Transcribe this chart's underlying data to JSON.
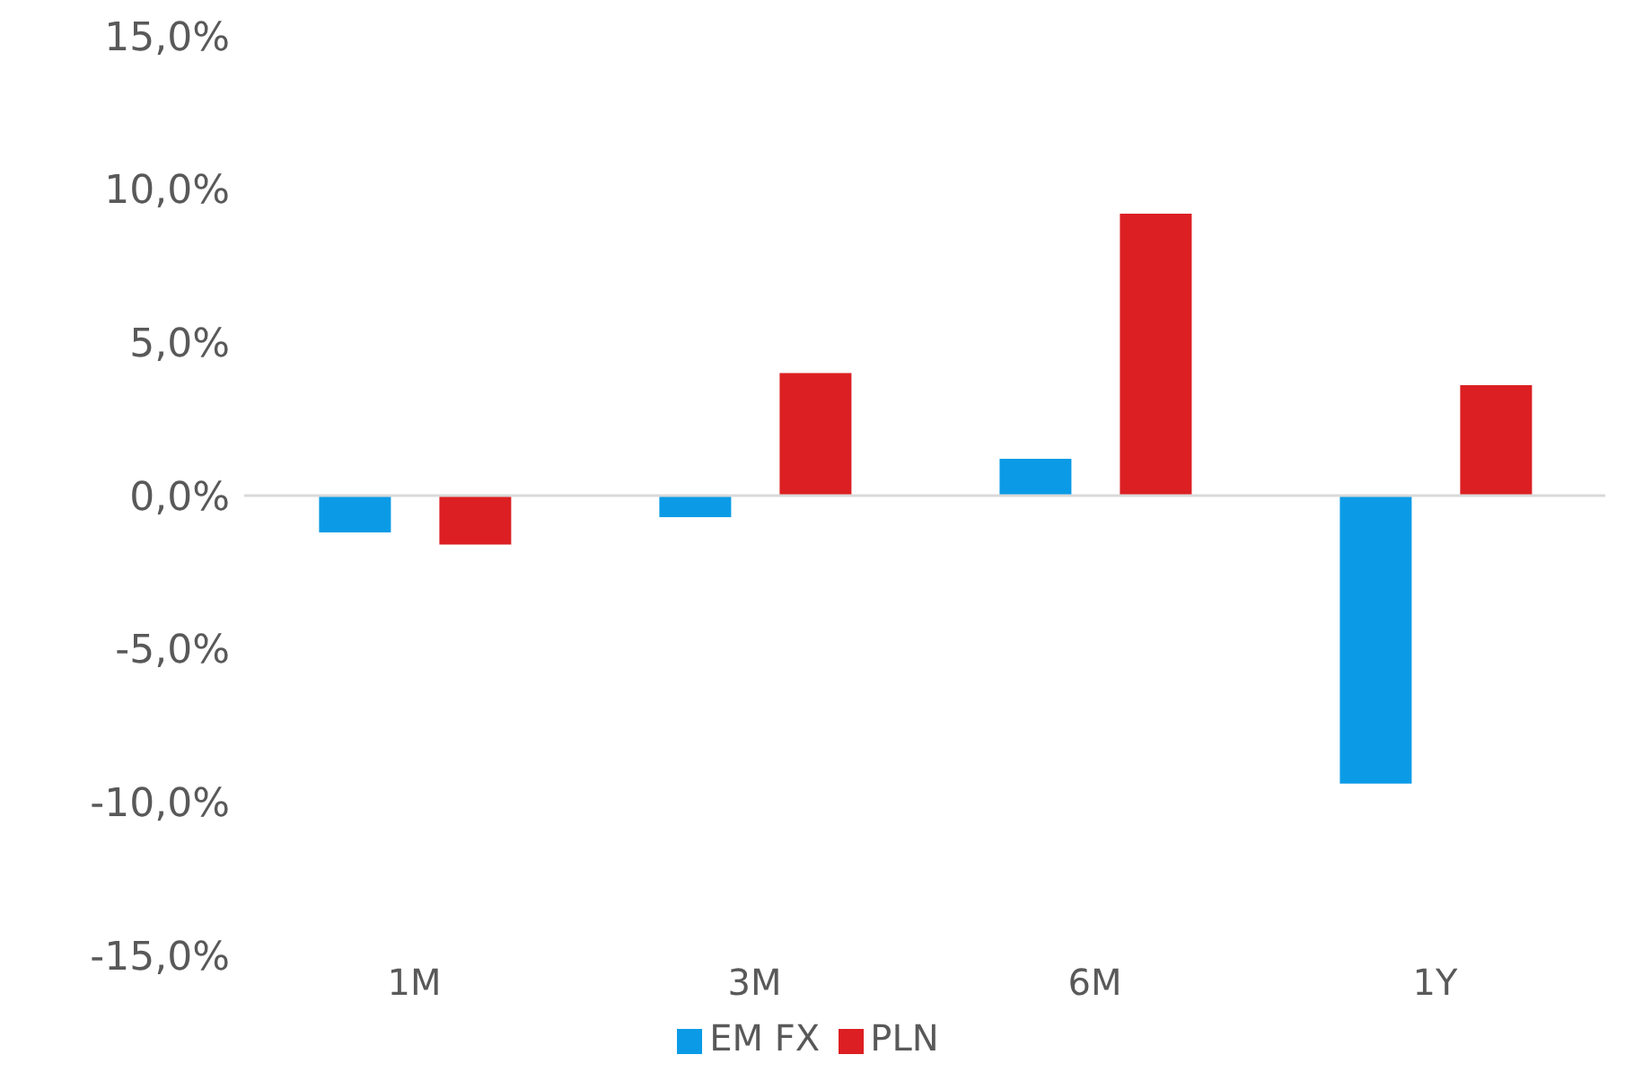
{
  "chart_data": {
    "type": "bar",
    "categories": [
      "1M",
      "3M",
      "6M",
      "1Y"
    ],
    "series": [
      {
        "name": "EM FX",
        "color": "#0b9be6",
        "values": [
          -1.2,
          -0.7,
          1.2,
          -9.4
        ]
      },
      {
        "name": "PLN",
        "color": "#dc1f22",
        "values": [
          -1.6,
          4.0,
          9.2,
          3.6
        ]
      }
    ],
    "ylim": [
      -15,
      15
    ],
    "yticks": [
      {
        "value": -15,
        "label": "-15,0%"
      },
      {
        "value": -10,
        "label": "-10,0%"
      },
      {
        "value": -5,
        "label": "-5,0%"
      },
      {
        "value": 0,
        "label": "0,0%"
      },
      {
        "value": 5,
        "label": "5,0%"
      },
      {
        "value": 10,
        "label": "10,0%"
      },
      {
        "value": 15,
        "label": "15,0%"
      }
    ],
    "ref_lines": [
      {
        "axis": "y",
        "value": 0,
        "color": "#d9d9d9"
      }
    ],
    "grid": false,
    "legend": "bottom"
  }
}
